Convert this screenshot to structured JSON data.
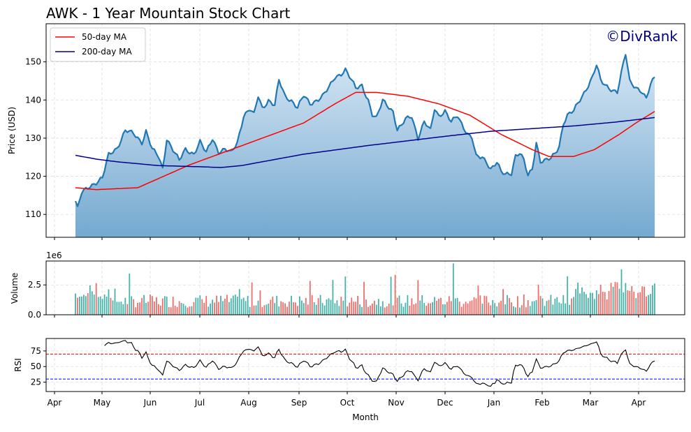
{
  "chart_data": [
    {
      "type": "area",
      "title": "AWK - 1 Year Mountain Stock Chart",
      "watermark": "©DivRank",
      "ylabel": "Price (USD)",
      "ylim": [
        104,
        160
      ],
      "yticks": [
        110,
        120,
        130,
        140,
        150
      ],
      "grid": true,
      "legend_position": "top-left",
      "months": [
        "Apr",
        "May",
        "Jun",
        "Jul",
        "Aug",
        "Sep",
        "Oct",
        "Nov",
        "Dec",
        "Jan",
        "Feb",
        "Mar",
        "Apr"
      ],
      "price_knots": [
        [
          0,
          113.5
        ],
        [
          1,
          111.5
        ],
        [
          3,
          115.5
        ],
        [
          7,
          117.5
        ],
        [
          10,
          118.5
        ],
        [
          13,
          119.5
        ],
        [
          16,
          125.5
        ],
        [
          20,
          127.5
        ],
        [
          24,
          132
        ],
        [
          28,
          131
        ],
        [
          32,
          129
        ],
        [
          34,
          132
        ],
        [
          37,
          127
        ],
        [
          40,
          125
        ],
        [
          42,
          122
        ],
        [
          44,
          130
        ],
        [
          47,
          127
        ],
        [
          50,
          124
        ],
        [
          53,
          127
        ],
        [
          57,
          126
        ],
        [
          60,
          129
        ],
        [
          63,
          126
        ],
        [
          66,
          130
        ],
        [
          69,
          126.5
        ],
        [
          72,
          127
        ],
        [
          75,
          126
        ],
        [
          78,
          129
        ],
        [
          81,
          136
        ],
        [
          84,
          137.5
        ],
        [
          86,
          136
        ],
        [
          88,
          141
        ],
        [
          90,
          138
        ],
        [
          93,
          140
        ],
        [
          96,
          138.5
        ],
        [
          98,
          145
        ],
        [
          101,
          141
        ],
        [
          104,
          140
        ],
        [
          107,
          138
        ],
        [
          110,
          141
        ],
        [
          113,
          139
        ],
        [
          116,
          140
        ],
        [
          119,
          141
        ],
        [
          122,
          143
        ],
        [
          125,
          146
        ],
        [
          128,
          147
        ],
        [
          130,
          148
        ],
        [
          133,
          145
        ],
        [
          135,
          143
        ],
        [
          138,
          144
        ],
        [
          141,
          140
        ],
        [
          143,
          136
        ],
        [
          145,
          135
        ],
        [
          148,
          140
        ],
        [
          150,
          139
        ],
        [
          153,
          137
        ],
        [
          155,
          132
        ],
        [
          157,
          133
        ],
        [
          159,
          135
        ],
        [
          162,
          136
        ],
        [
          165,
          130
        ],
        [
          168,
          134
        ],
        [
          171,
          132
        ],
        [
          173,
          138
        ],
        [
          175,
          136
        ],
        [
          178,
          137
        ],
        [
          181,
          134
        ],
        [
          184,
          136
        ],
        [
          187,
          133
        ],
        [
          189,
          131
        ],
        [
          191,
          130
        ],
        [
          193,
          125
        ],
        [
          196,
          125
        ],
        [
          198,
          124
        ],
        [
          200,
          122
        ],
        [
          203,
          123.5
        ],
        [
          205,
          121
        ],
        [
          207,
          120.5
        ],
        [
          210,
          121
        ],
        [
          212,
          125.5
        ],
        [
          214,
          126
        ],
        [
          216,
          124
        ],
        [
          218,
          120
        ],
        [
          220,
          122
        ],
        [
          222,
          129
        ],
        [
          224,
          124
        ],
        [
          226,
          124
        ],
        [
          229,
          124.5
        ],
        [
          231,
          126
        ],
        [
          233,
          128
        ],
        [
          235,
          134
        ],
        [
          237,
          136
        ],
        [
          240,
          137
        ],
        [
          242,
          139
        ],
        [
          244,
          141
        ],
        [
          247,
          144
        ],
        [
          249,
          146
        ],
        [
          251,
          149
        ],
        [
          253,
          145
        ],
        [
          255,
          144
        ],
        [
          258,
          143
        ],
        [
          261,
          142
        ],
        [
          263,
          147
        ],
        [
          265,
          152
        ],
        [
          267,
          145
        ],
        [
          269,
          144
        ],
        [
          271,
          143
        ],
        [
          273,
          142
        ],
        [
          275,
          140
        ],
        [
          277,
          144
        ],
        [
          279,
          146
        ]
      ],
      "series": [
        {
          "name": "50-day MA",
          "color": "#ff0000",
          "knots": [
            [
              0,
              117
            ],
            [
              10,
              116.5
            ],
            [
              30,
              117
            ],
            [
              55,
              123
            ],
            [
              80,
              128
            ],
            [
              110,
              134
            ],
            [
              125,
              139
            ],
            [
              135,
              142
            ],
            [
              145,
              142
            ],
            [
              160,
              141
            ],
            [
              175,
              139
            ],
            [
              190,
              136
            ],
            [
              205,
              131
            ],
            [
              220,
              127
            ],
            [
              228,
              125.2
            ],
            [
              240,
              125.2
            ],
            [
              250,
              127
            ],
            [
              262,
              131
            ],
            [
              270,
              134
            ],
            [
              279,
              137
            ]
          ]
        },
        {
          "name": "200-day MA",
          "color": "#00008b",
          "knots": [
            [
              0,
              125.5
            ],
            [
              10,
              124.5
            ],
            [
              20,
              123.8
            ],
            [
              40,
              122.8
            ],
            [
              60,
              122.5
            ],
            [
              70,
              122.3
            ],
            [
              80,
              122.8
            ],
            [
              95,
              124.3
            ],
            [
              110,
              125.8
            ],
            [
              125,
              126.9
            ],
            [
              140,
              128
            ],
            [
              160,
              129.3
            ],
            [
              180,
              130.6
            ],
            [
              200,
              131.8
            ],
            [
              220,
              132.5
            ],
            [
              240,
              133.2
            ],
            [
              260,
              134.2
            ],
            [
              279,
              135.4
            ]
          ]
        }
      ]
    },
    {
      "type": "bar",
      "ylabel": "Volume",
      "offset_label": "1e6",
      "ylim": [
        0,
        4.5
      ],
      "yticks": [
        0.0,
        2.5
      ],
      "ytick_labels": [
        "0.0",
        "2.5"
      ],
      "colors": {
        "up": "#26a69a",
        "down": "#ef5350"
      }
    },
    {
      "type": "line",
      "ylabel": "RSI",
      "xlabel": "Month",
      "ylim": [
        10,
        95
      ],
      "yticks": [
        25,
        50,
        75
      ],
      "overbought": 70,
      "oversold": 30
    }
  ]
}
